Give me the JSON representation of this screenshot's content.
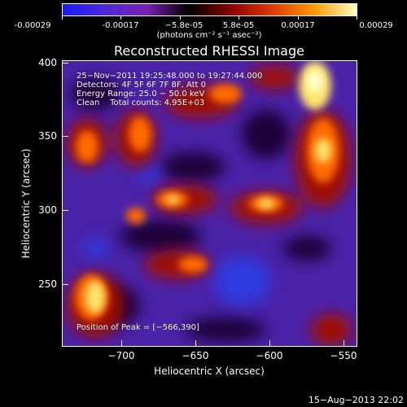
{
  "colorbar": {
    "tick_labels": [
      "-0.00029",
      "-0.00017",
      "−5.8e-05",
      "5.8e-05",
      "0.00017",
      "0.00029"
    ],
    "unit_label": "(photons cm⁻² s⁻¹ asec⁻²)",
    "colors": [
      "#1a1aff",
      "#4b2ad6",
      "#7a1fb0",
      "#000000",
      "#8a0000",
      "#e03a00",
      "#ff9a00",
      "#ffffc0"
    ]
  },
  "title": "Reconstructed RHESSI Image",
  "info": {
    "time_range": "25−Nov−2011 19:25:48.000 to 19:27:44.000",
    "detectors": "Detectors: 4F 5F 6F 7F 8F, Att 0",
    "energy": "Energy Range: 25.0 − 50.0 keV",
    "method": "Clean    Total counts: 4.95E+03",
    "peak": "Position of Peak = [−566,390]"
  },
  "axes": {
    "x_title": "Heliocentric X (arcsec)",
    "y_title": "Heliocentric Y (arcsec)",
    "x_ticks": [
      "−700",
      "−650",
      "−600",
      "−550"
    ],
    "y_ticks": [
      "400",
      "350",
      "300",
      "250"
    ]
  },
  "footer": "15−Aug−2013 22:02"
}
